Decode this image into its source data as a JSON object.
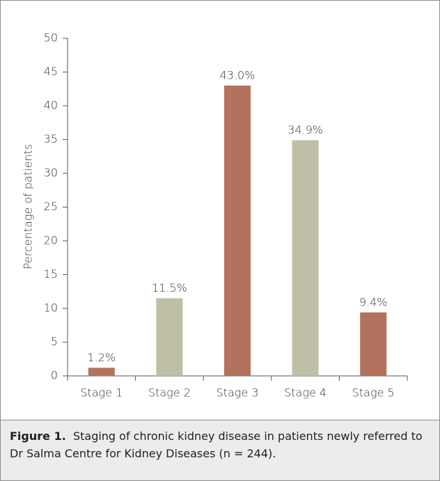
{
  "chart_data": {
    "type": "bar",
    "y_label": "Percentage of patients",
    "categories": [
      "Stage 1",
      "Stage 2",
      "Stage 3",
      "Stage 4",
      "Stage 5"
    ],
    "values": [
      1.2,
      11.5,
      43.0,
      34.9,
      9.4
    ],
    "value_labels": [
      "1.2%",
      "11.5%",
      "43.0%",
      "34.9%",
      "9.4%"
    ],
    "colors": [
      "#b3725d",
      "#bebfa5",
      "#b3725d",
      "#bebfa5",
      "#b3725d"
    ],
    "ylim": [
      0,
      50
    ],
    "yticks": [
      0,
      5,
      10,
      15,
      20,
      25,
      30,
      35,
      40,
      45,
      50
    ],
    "grid": false,
    "caption_label": "Figure 1.",
    "caption": "Staging of chronic kidney disease in patients newly referred to Dr Salma Centre for Kidney Diseases (n = 244)."
  }
}
